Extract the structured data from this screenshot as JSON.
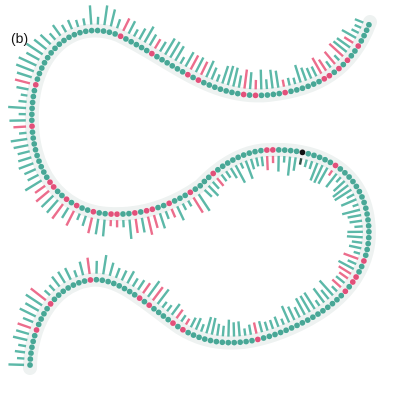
{
  "figure": {
    "panel_label": "(b)"
  },
  "colors": {
    "background": "#ffffff",
    "teal": "#5cb8a8",
    "teal_node": "#48a796",
    "pink": "#ec6d8c",
    "pink_node": "#e2507a",
    "dark": "#2f4f45",
    "halo": "#eef2f1"
  },
  "legend": {
    "node_categories": [
      "teal",
      "pink",
      "dark"
    ],
    "note": ""
  }
}
